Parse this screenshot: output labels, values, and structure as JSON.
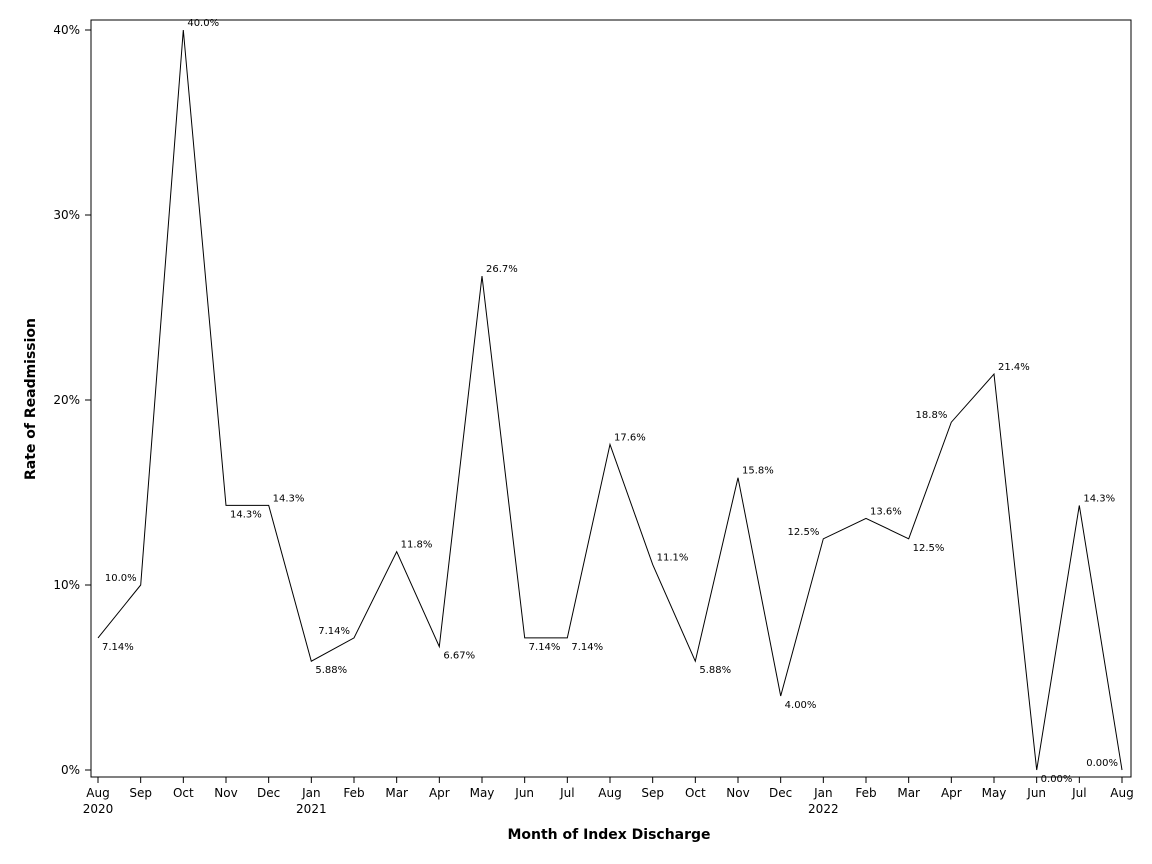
{
  "chart_data": {
    "type": "line",
    "xlabel": "Month of Index Discharge",
    "ylabel": "Rate of Readmission",
    "ylim": [
      0,
      40
    ],
    "yticks": [
      "0%",
      "10%",
      "20%",
      "30%",
      "40%"
    ],
    "grid": false,
    "categories": [
      {
        "month": "Aug",
        "year": "2020"
      },
      {
        "month": "Sep",
        "year": ""
      },
      {
        "month": "Oct",
        "year": ""
      },
      {
        "month": "Nov",
        "year": ""
      },
      {
        "month": "Dec",
        "year": ""
      },
      {
        "month": "Jan",
        "year": "2021"
      },
      {
        "month": "Feb",
        "year": ""
      },
      {
        "month": "Mar",
        "year": ""
      },
      {
        "month": "Apr",
        "year": ""
      },
      {
        "month": "May",
        "year": ""
      },
      {
        "month": "Jun",
        "year": ""
      },
      {
        "month": "Jul",
        "year": ""
      },
      {
        "month": "Aug",
        "year": ""
      },
      {
        "month": "Sep",
        "year": ""
      },
      {
        "month": "Oct",
        "year": ""
      },
      {
        "month": "Nov",
        "year": ""
      },
      {
        "month": "Dec",
        "year": ""
      },
      {
        "month": "Jan",
        "year": "2022"
      },
      {
        "month": "Feb",
        "year": ""
      },
      {
        "month": "Mar",
        "year": ""
      },
      {
        "month": "Apr",
        "year": ""
      },
      {
        "month": "May",
        "year": ""
      },
      {
        "month": "Jun",
        "year": ""
      },
      {
        "month": "Jul",
        "year": ""
      },
      {
        "month": "Aug",
        "year": ""
      }
    ],
    "values": [
      7.14,
      10.0,
      40.0,
      14.3,
      14.3,
      5.88,
      7.14,
      11.8,
      6.67,
      26.7,
      7.14,
      7.14,
      17.6,
      11.1,
      5.88,
      15.8,
      4.0,
      12.5,
      13.6,
      12.5,
      18.8,
      21.4,
      0.0,
      14.3,
      0.0
    ],
    "value_labels": [
      "7.14%",
      "10.0%",
      "40.0%",
      "14.3%",
      "14.3%",
      "5.88%",
      "7.14%",
      "11.8%",
      "6.67%",
      "26.7%",
      "7.14%",
      "7.14%",
      "17.6%",
      "11.1%",
      "5.88%",
      "15.8%",
      "4.00%",
      "12.5%",
      "13.6%",
      "12.5%",
      "18.8%",
      "21.4%",
      "0.00%",
      "14.3%",
      "0.00%"
    ],
    "line_color": "#000000"
  }
}
